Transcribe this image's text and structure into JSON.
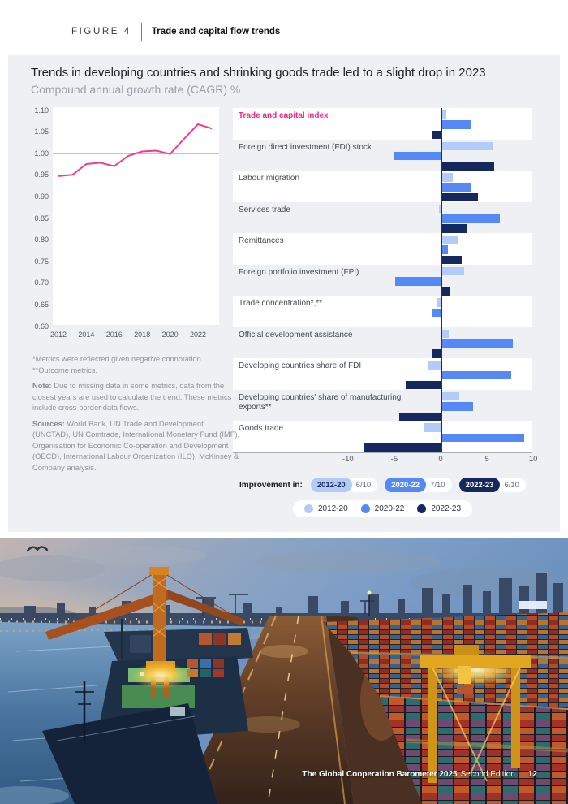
{
  "page": {
    "figure_label": "FIGURE 4",
    "figure_title": "Trade and capital flow trends",
    "title": "Trends in developing countries and shrinking goods trade led to a slight drop in 2023",
    "subtitle": "Compound annual growth rate (CAGR) %"
  },
  "notes": {
    "line1": "*Metrics were reflected given negative connotation.",
    "line2": "**Outcome metrics.",
    "note_label": "Note:",
    "note_text": " Due to missing data in some metrics, data from the closest years are used to calculate the trend. These metrics include cross-border data flows.",
    "sources_label": "Sources:",
    "sources_text": " World Bank, UN Trade and Development (UNCTAD), UN Comtrade, International Monetary Fund (IMF), Organisation for Economic Co-operation and Development (OECD), International Labour Organization (ILO), McKinsey & Company analysis."
  },
  "improvement": {
    "label": "Improvement in:",
    "items": [
      {
        "period": "2012-20",
        "score": "6/10",
        "color": "#b3cbf7",
        "text_color": "#1c2e5e"
      },
      {
        "period": "2020-22",
        "score": "7/10",
        "color": "#5589f6",
        "text_color": "#ffffff"
      },
      {
        "period": "2022-23",
        "score": "6/10",
        "color": "#16295e",
        "text_color": "#ffffff"
      }
    ]
  },
  "legend": {
    "items": [
      {
        "label": "2012-20",
        "color": "#b3cbf7"
      },
      {
        "label": "2020-22",
        "color": "#5589f6"
      },
      {
        "label": "2022-23",
        "color": "#16295e"
      }
    ]
  },
  "footer": {
    "title": "The Global Cooperation Barometer 2025",
    "edition": "Second Edition",
    "page_number": "12"
  },
  "chart_data": [
    {
      "type": "line",
      "title": "Trade and capital index over time",
      "x": [
        2012,
        2013,
        2014,
        2015,
        2016,
        2017,
        2018,
        2019,
        2020,
        2021,
        2022,
        2023
      ],
      "series": [
        {
          "name": "Trade and capital index",
          "color": "#ee3d8f",
          "values": [
            0.948,
            0.951,
            0.976,
            0.979,
            0.971,
            0.995,
            1.005,
            1.007,
            0.999,
            1.034,
            1.068,
            1.058
          ]
        }
      ],
      "ylim": [
        0.6,
        1.1
      ],
      "yticks": [
        "1.10",
        "1.05",
        "1.00",
        "0.95",
        "0.90",
        "0.85",
        "0.80",
        "0.75",
        "0.70",
        "0.65",
        "0.60"
      ],
      "xticks": [
        2012,
        2014,
        2016,
        2018,
        2020,
        2022
      ],
      "reference_line": 1.0,
      "grid": false
    },
    {
      "type": "bar",
      "orientation": "horizontal",
      "categories": [
        "Trade and capital index",
        "Foreign direct investment (FDI) stock",
        "Labour migration",
        "Services trade",
        "Remittances",
        "Foreign portfolio investment (FPI)",
        "Trade concentration*,**",
        "Official development assistance",
        "Developing countries share of FDI",
        "Developing countries' share of manufacturing exports**",
        "Goods trade"
      ],
      "series": [
        {
          "name": "2012-20",
          "color": "#b3cbf7",
          "values": [
            0.6,
            5.6,
            1.3,
            -0.2,
            1.8,
            2.5,
            -0.4,
            0.9,
            -1.4,
            2.0,
            -1.8
          ]
        },
        {
          "name": "2020-22",
          "color": "#5589f6",
          "values": [
            3.3,
            -5.0,
            3.3,
            6.4,
            0.8,
            -4.9,
            -0.9,
            7.8,
            7.6,
            3.5,
            9.0
          ]
        },
        {
          "name": "2022-23",
          "color": "#16295e",
          "values": [
            -1.0,
            5.8,
            4.0,
            2.9,
            2.3,
            1.0,
            0.0,
            -1.0,
            -3.8,
            -4.5,
            -8.3
          ]
        }
      ],
      "xticks": [
        -10,
        -5,
        0,
        5,
        10
      ],
      "xlim": [
        -22.4,
        10
      ],
      "legend_position": "bottom"
    }
  ]
}
